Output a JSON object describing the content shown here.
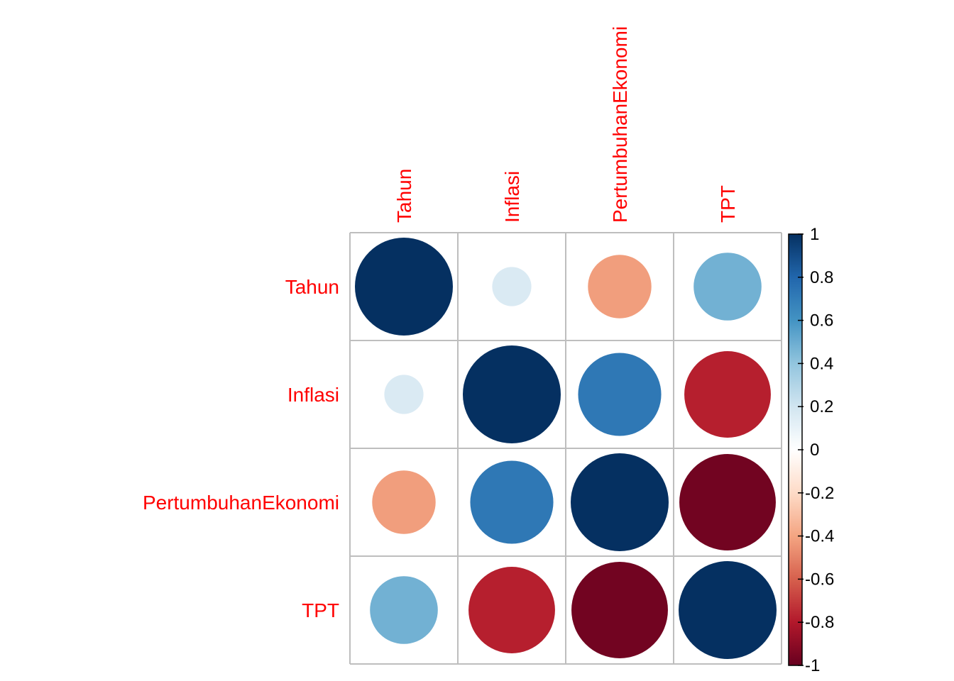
{
  "chart_data": {
    "type": "heatmap",
    "style": "correlation-circles",
    "variables": [
      "Tahun",
      "Inflasi",
      "PertumbuhanEkonomi",
      "TPT"
    ],
    "matrix": [
      [
        1.0,
        0.16,
        -0.42,
        0.48
      ],
      [
        0.16,
        1.0,
        0.72,
        -0.78
      ],
      [
        -0.42,
        0.72,
        1.0,
        -0.97
      ],
      [
        0.48,
        -0.78,
        -0.97,
        1.0
      ]
    ],
    "label_color": "#FF0000",
    "grid_color": "#BEBEBE",
    "color_range": [
      -1,
      1
    ],
    "colorbar": {
      "ticks": [
        "1",
        "0.8",
        "0.6",
        "0.4",
        "0.2",
        "0",
        "-0.2",
        "-0.4",
        "-0.6",
        "-0.8",
        "-1"
      ],
      "tick_values": [
        1,
        0.8,
        0.6,
        0.4,
        0.2,
        0,
        -0.2,
        -0.4,
        -0.6,
        -0.8,
        -1
      ],
      "palette": [
        "#67001F",
        "#B2182B",
        "#D6604D",
        "#F4A582",
        "#FDDBC7",
        "#FFFFFF",
        "#D1E5F0",
        "#92C5DE",
        "#4393C3",
        "#2166AC",
        "#053061"
      ],
      "placement": "right"
    }
  }
}
